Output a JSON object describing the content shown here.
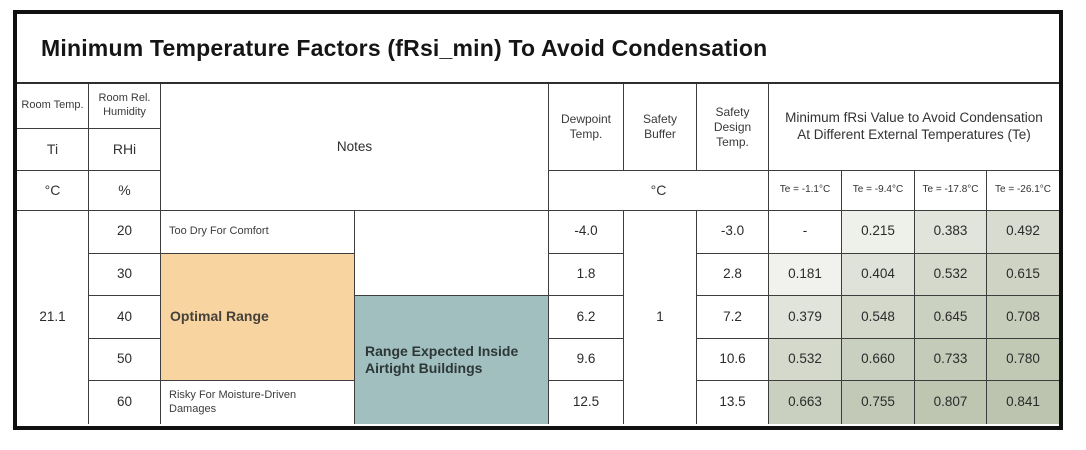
{
  "title": "Minimum Temperature Factors (fRsi_min) To Avoid Condensation",
  "header": {
    "room_temp_label": "Room Temp.",
    "room_temp_symbol": "Ti",
    "room_temp_unit": "°C",
    "rh_label": "Room Rel. Humidity",
    "rh_symbol": "RHi",
    "rh_unit": "%",
    "notes_label": "Notes",
    "dewpoint_label": "Dewpoint Temp.",
    "safety_buffer_label": "Safety Buffer",
    "safety_design_label": "Safety Design Temp.",
    "mid_unit": "°C",
    "frsi_group_label": "Minimum fRsi Value to Avoid Condensation At Different External Temperatures (Te)",
    "te_labels": [
      "Te = -1.1°C",
      "Te = -9.4°C",
      "Te = -17.8°C",
      "Te = -26.1°C"
    ]
  },
  "notes": {
    "too_dry": "Too Dry For Comfort",
    "optimal_range": "Optimal Range",
    "risky": "Risky For Moisture-Driven Damages",
    "airtight": "Range Expected Inside Airtight Buildings"
  },
  "room_temp_value": "21.1",
  "safety_buffer_value": "1",
  "rows": [
    {
      "rh": "20",
      "dewpoint": "-4.0",
      "design": "-3.0",
      "frsi": [
        "-",
        "0.215",
        "0.383",
        "0.492"
      ]
    },
    {
      "rh": "30",
      "dewpoint": "1.8",
      "design": "2.8",
      "frsi": [
        "0.181",
        "0.404",
        "0.532",
        "0.615"
      ]
    },
    {
      "rh": "40",
      "dewpoint": "6.2",
      "design": "7.2",
      "frsi": [
        "0.379",
        "0.548",
        "0.645",
        "0.708"
      ]
    },
    {
      "rh": "50",
      "dewpoint": "9.6",
      "design": "10.6",
      "frsi": [
        "0.532",
        "0.660",
        "0.733",
        "0.780"
      ]
    },
    {
      "rh": "60",
      "dewpoint": "12.5",
      "design": "13.5",
      "frsi": [
        "0.663",
        "0.755",
        "0.807",
        "0.841"
      ]
    }
  ],
  "colors": {
    "optimal_range_fill": "#f8d5a0",
    "airtight_range_fill": "#a2bfc0",
    "frsi_scale_base": "#afb89f",
    "frsi_scale_min": "#ffffff",
    "grid_line": "#3d3d3d",
    "outer_border": "#101010"
  }
}
